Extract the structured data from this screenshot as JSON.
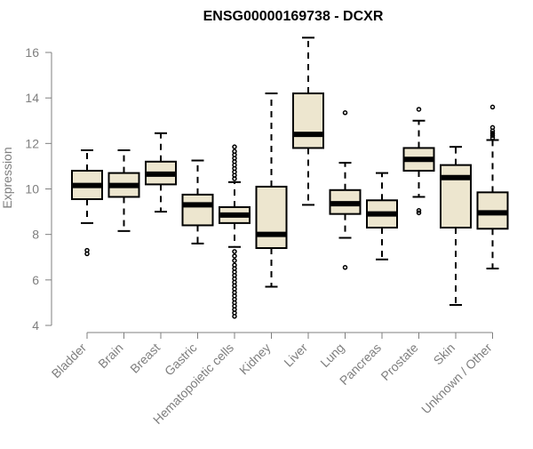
{
  "chart_data": {
    "type": "boxplot",
    "title": "ENSG00000169738 - DCXR",
    "xlabel": "",
    "ylabel": "Expression",
    "ylim": [
      4,
      16
    ],
    "yticks": [
      4,
      6,
      8,
      10,
      12,
      14,
      16
    ],
    "grid": false,
    "box_fill": "#ede6cf",
    "categories": [
      "Bladder",
      "Brain",
      "Breast",
      "Gastric",
      "Hematopoietic cells",
      "Kidney",
      "Liver",
      "Lung",
      "Pancreas",
      "Prostate",
      "Skin",
      "Unknown / Other"
    ],
    "boxes": [
      {
        "category": "Bladder",
        "whisker_low": 8.5,
        "q1": 9.55,
        "median": 10.15,
        "q3": 10.8,
        "whisker_high": 11.7,
        "outliers": [
          7.15,
          7.3
        ]
      },
      {
        "category": "Brain",
        "whisker_low": 8.15,
        "q1": 9.65,
        "median": 10.15,
        "q3": 10.7,
        "whisker_high": 11.7,
        "outliers": []
      },
      {
        "category": "Breast",
        "whisker_low": 9.0,
        "q1": 10.2,
        "median": 10.65,
        "q3": 11.2,
        "whisker_high": 12.45,
        "outliers": []
      },
      {
        "category": "Gastric",
        "whisker_low": 7.6,
        "q1": 8.4,
        "median": 9.3,
        "q3": 9.75,
        "whisker_high": 11.25,
        "outliers": []
      },
      {
        "category": "Hematopoietic cells",
        "whisker_low": 7.45,
        "q1": 8.5,
        "median": 8.85,
        "q3": 9.2,
        "whisker_high": 10.3,
        "outliers": [
          4.4,
          4.55,
          4.7,
          4.85,
          5.0,
          5.15,
          5.3,
          5.45,
          5.6,
          5.75,
          5.9,
          6.05,
          6.2,
          6.35,
          6.5,
          6.65,
          6.85,
          7.05,
          7.25,
          10.45,
          10.6,
          10.75,
          10.9,
          11.05,
          11.2,
          11.35,
          11.5,
          11.65,
          11.85
        ]
      },
      {
        "category": "Kidney",
        "whisker_low": 5.7,
        "q1": 7.4,
        "median": 8.0,
        "q3": 10.1,
        "whisker_high": 14.2,
        "outliers": []
      },
      {
        "category": "Liver",
        "whisker_low": 9.3,
        "q1": 11.8,
        "median": 12.4,
        "q3": 14.2,
        "whisker_high": 16.65,
        "outliers": []
      },
      {
        "category": "Lung",
        "whisker_low": 7.85,
        "q1": 8.9,
        "median": 9.35,
        "q3": 9.95,
        "whisker_high": 11.15,
        "outliers": [
          6.55,
          13.35
        ]
      },
      {
        "category": "Pancreas",
        "whisker_low": 6.9,
        "q1": 8.3,
        "median": 8.9,
        "q3": 9.5,
        "whisker_high": 10.7,
        "outliers": []
      },
      {
        "category": "Prostate",
        "whisker_low": 9.65,
        "q1": 10.8,
        "median": 11.3,
        "q3": 11.8,
        "whisker_high": 13.0,
        "outliers": [
          8.95,
          9.05,
          13.5
        ]
      },
      {
        "category": "Skin",
        "whisker_low": 4.9,
        "q1": 8.3,
        "median": 10.5,
        "q3": 11.05,
        "whisker_high": 11.85,
        "outliers": []
      },
      {
        "category": "Unknown / Other",
        "whisker_low": 6.5,
        "q1": 8.25,
        "median": 8.95,
        "q3": 9.85,
        "whisker_high": 12.15,
        "outliers": [
          12.25,
          12.35,
          12.45,
          12.55,
          12.7,
          13.6
        ]
      }
    ]
  }
}
